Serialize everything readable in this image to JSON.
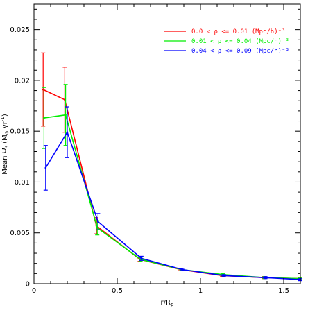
{
  "chart_data": {
    "type": "line",
    "title": "",
    "xlabel": "r/R_p",
    "ylabel": "Mean Ψ_* (M_⊙ yr⁻¹)",
    "xlim": [
      0,
      1.6
    ],
    "ylim": [
      0,
      0.0275
    ],
    "x_ticks": [
      {
        "value": 0,
        "label": "0"
      },
      {
        "value": 0.5,
        "label": "0.5"
      },
      {
        "value": 1,
        "label": "1"
      },
      {
        "value": 1.5,
        "label": "1.5"
      }
    ],
    "y_ticks": [
      {
        "value": 0,
        "label": "0"
      },
      {
        "value": 0.005,
        "label": "0.005"
      },
      {
        "value": 0.01,
        "label": "0.01"
      },
      {
        "value": 0.015,
        "label": "0.015"
      },
      {
        "value": 0.02,
        "label": "0.02"
      },
      {
        "value": 0.025,
        "label": "0.025"
      }
    ],
    "grid": false,
    "legend_position": "top-right",
    "series": [
      {
        "name": "0.0 < ρ <= 0.01 (Mpc/h)⁻³",
        "color": "#ff0000",
        "x": [
          0.055,
          0.185,
          0.375,
          0.635,
          0.88,
          1.13,
          1.38,
          1.6
        ],
        "y": [
          0.0191,
          0.0181,
          0.0057,
          0.0024,
          0.0014,
          0.0008,
          0.0006,
          0.0005
        ],
        "err": [
          0.0036,
          0.0032,
          0.0008,
          0.0002,
          0.0001,
          0.0001,
          0.0001,
          0.0001
        ]
      },
      {
        "name": "0.01 < ρ <= 0.04 (Mpc/h)⁻³",
        "color": "#00ee00",
        "x": [
          0.06,
          0.19,
          0.38,
          0.64,
          0.885,
          1.135,
          1.385,
          1.6
        ],
        "y": [
          0.0163,
          0.0166,
          0.0055,
          0.0024,
          0.0014,
          0.0009,
          0.0006,
          0.0005
        ],
        "err": [
          0.003,
          0.003,
          0.0007,
          0.0002,
          0.0001,
          0.0001,
          0.0001,
          0.0001
        ]
      },
      {
        "name": "0.04 < ρ <= 0.09 (Mpc/h)⁻³",
        "color": "#0000ff",
        "x": [
          0.07,
          0.2,
          0.385,
          0.645,
          0.89,
          1.14,
          1.39,
          1.6
        ],
        "y": [
          0.0114,
          0.0149,
          0.0061,
          0.0025,
          0.0014,
          0.0008,
          0.0006,
          0.0004
        ],
        "err": [
          0.0022,
          0.0025,
          0.0008,
          0.0002,
          0.0001,
          0.0001,
          0.0001,
          0.0001
        ]
      }
    ]
  }
}
